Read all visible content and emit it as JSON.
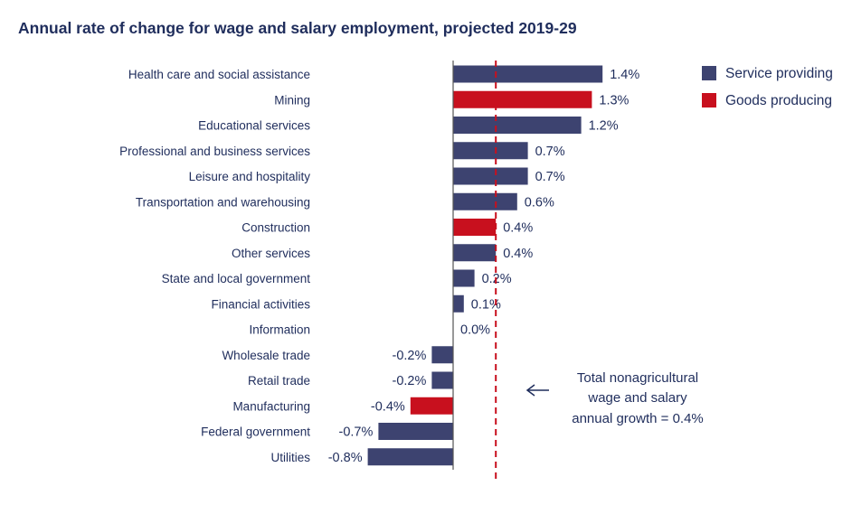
{
  "chart_data": {
    "type": "bar",
    "orientation": "horizontal",
    "title": "Annual rate of change for wage and salary employment, projected 2019-29",
    "categories": [
      "Health care and social assistance",
      "Mining",
      "Educational services",
      "Professional and business services",
      "Leisure and hospitality",
      "Transportation and warehousing",
      "Construction",
      "Other services",
      "State and local government",
      "Financial activities",
      "Information",
      "Wholesale trade",
      "Retail trade",
      "Manufacturing",
      "Federal government",
      "Utilities"
    ],
    "values": [
      1.4,
      1.3,
      1.2,
      0.7,
      0.7,
      0.6,
      0.4,
      0.4,
      0.2,
      0.1,
      0.0,
      -0.2,
      -0.2,
      -0.4,
      -0.7,
      -0.8
    ],
    "value_labels": [
      "1.4%",
      "1.3%",
      "1.2%",
      "0.7%",
      "0.7%",
      "0.6%",
      "0.4%",
      "0.4%",
      "0.2%",
      "0.1%",
      "0.0%",
      "-0.2%",
      "-0.2%",
      "-0.4%",
      "-0.7%",
      "-0.8%"
    ],
    "groups": [
      "service",
      "goods",
      "service",
      "service",
      "service",
      "service",
      "goods",
      "service",
      "service",
      "service",
      "service",
      "service",
      "service",
      "goods",
      "service",
      "service"
    ],
    "legend": [
      {
        "key": "service",
        "label": "Service providing",
        "color": "#3d4370"
      },
      {
        "key": "goods",
        "label": "Goods producing",
        "color": "#c8101e"
      }
    ],
    "legend_position": "top-right",
    "reference_line": {
      "value": 0.4,
      "style": "dashed",
      "color": "#c8101e"
    },
    "annotation": {
      "lines": [
        "Total nonagricultural",
        "wage and salary",
        "annual growth = 0.4%"
      ],
      "arrow": "left"
    },
    "xlim": [
      -0.8,
      1.4
    ],
    "grid": false
  },
  "colors": {
    "title": "#1f2d5c",
    "text": "#1f2d5c",
    "axis": "#555555"
  }
}
